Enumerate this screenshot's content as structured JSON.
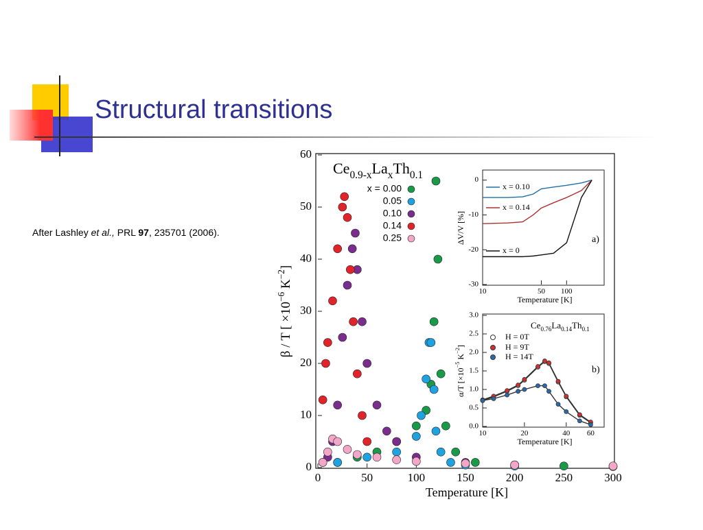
{
  "title": "Structural transitions",
  "citation": {
    "prefix": "After Lashley ",
    "etal": "et al.,",
    "journal": " PRL ",
    "volume": "97",
    "rest": ", 235701 (2006)."
  },
  "chart_data": [
    {
      "type": "scatter",
      "formula": [
        "Ce",
        "0.9-x",
        "La",
        "x",
        "Th",
        "0.1"
      ],
      "xlabel": "Temperature [K]",
      "ylabel": [
        "β / T [ ×10",
        "−6",
        " K",
        "−2",
        "]"
      ],
      "xlim": [
        0,
        300
      ],
      "ylim": [
        0,
        60
      ],
      "xticks": [
        0,
        50,
        100,
        150,
        200,
        250,
        300
      ],
      "yticks": [
        0,
        10,
        20,
        30,
        40,
        50,
        60
      ],
      "series": [
        {
          "name": "x = 0.00",
          "color": "#1a9a48",
          "x": [
            20,
            40,
            60,
            80,
            100,
            110,
            115,
            118,
            120,
            122,
            125,
            130,
            140,
            160,
            200,
            250,
            300
          ],
          "values": [
            1,
            2,
            3,
            5,
            8,
            11,
            16,
            28,
            55,
            40,
            18,
            8,
            3,
            1,
            0.5,
            0.3,
            0.2
          ]
        },
        {
          "name": "0.05",
          "color": "#1fa2e0",
          "x": [
            20,
            50,
            80,
            100,
            105,
            110,
            113,
            115,
            118,
            120,
            125,
            135,
            150,
            200
          ],
          "values": [
            1,
            2,
            3,
            6,
            10,
            17,
            24,
            24,
            15,
            7,
            3,
            1,
            0.5,
            0.3
          ]
        },
        {
          "name": "0.10",
          "color": "#7b2d8e",
          "x": [
            5,
            10,
            15,
            20,
            25,
            30,
            35,
            38,
            40,
            45,
            50,
            60,
            70,
            80,
            100,
            150,
            200
          ],
          "values": [
            1,
            2,
            5,
            12,
            25,
            35,
            42,
            45,
            38,
            28,
            20,
            12,
            7,
            5,
            2,
            1,
            0.5
          ]
        },
        {
          "name": "0.14",
          "color": "#e0242a",
          "x": [
            5,
            8,
            10,
            15,
            20,
            25,
            27,
            30,
            33,
            36,
            40,
            45,
            50
          ],
          "values": [
            13,
            20,
            24,
            32,
            42,
            50,
            52,
            48,
            38,
            28,
            18,
            10,
            5
          ]
        },
        {
          "name": "0.25",
          "color": "#f4a6c8",
          "x": [
            5,
            10,
            15,
            20,
            30,
            40,
            60,
            80,
            100,
            150,
            200,
            300
          ],
          "values": [
            1,
            3,
            5.5,
            5,
            3.5,
            2.5,
            2,
            1.5,
            1.2,
            0.8,
            0.5,
            0.3
          ]
        }
      ]
    },
    {
      "type": "line",
      "xlog": true,
      "xlabel": "Temperature [K]",
      "ylabel": [
        "ΔV/V [%]"
      ],
      "annotation": "a)",
      "xlim": [
        10,
        280
      ],
      "ylim": [
        -30,
        2.5
      ],
      "xticks": [
        10,
        50,
        100
      ],
      "yticks": [
        0,
        -10,
        -20,
        -30
      ],
      "x": [
        10,
        20,
        30,
        40,
        50,
        70,
        100,
        150,
        200
      ],
      "series": [
        {
          "name": "x = 0.10",
          "color": "#1f6fa8",
          "values": [
            -5,
            -5,
            -4.8,
            -4,
            -2.5,
            -2,
            -1.5,
            -0.8,
            0
          ]
        },
        {
          "name": "x = 0.14",
          "color": "#b03030",
          "values": [
            -12.5,
            -12.3,
            -12,
            -10,
            -8,
            -6.5,
            -5,
            -3,
            0
          ]
        },
        {
          "name": "x = 0",
          "color": "#111111",
          "values": [
            -22,
            -22,
            -22,
            -21.8,
            -21.5,
            -21,
            -18,
            -5,
            0
          ]
        }
      ]
    },
    {
      "type": "line",
      "xlog": true,
      "formula": [
        "Ce",
        "0.76",
        "La",
        "0.14",
        "Th",
        "0.1"
      ],
      "xlabel": "Temperature [K]",
      "ylabel": [
        "α/T [×10",
        "−5",
        " K",
        "−2",
        "]"
      ],
      "annotation": "b)",
      "xlim": [
        10,
        75
      ],
      "ylim": [
        0,
        3
      ],
      "xticks": [
        10,
        20,
        40,
        60
      ],
      "yticks": [
        {
          "value": 0,
          "label": "0.0"
        },
        0.5,
        {
          "value": 1,
          "label": "1.0"
        },
        1.5,
        {
          "value": 2,
          "label": "2.0"
        },
        2.5,
        {
          "value": 3,
          "label": "3.0"
        }
      ],
      "x": [
        10,
        12,
        15,
        18,
        20,
        25,
        28,
        30,
        35,
        40,
        50,
        60
      ],
      "series": [
        {
          "name": "H = 0T",
          "color": "#ffffff",
          "values": [
            0.7,
            0.8,
            0.95,
            1.1,
            1.25,
            1.6,
            1.75,
            1.7,
            1.2,
            0.8,
            0.3,
            0.1
          ]
        },
        {
          "name": "H = 9T",
          "color": "#d03030",
          "values": [
            0.72,
            0.82,
            0.97,
            1.12,
            1.27,
            1.62,
            1.77,
            1.72,
            1.22,
            0.82,
            0.32,
            0.12
          ]
        },
        {
          "name": "H = 14T",
          "color": "#2a6aa8",
          "values": [
            0.7,
            0.75,
            0.85,
            0.95,
            1.0,
            1.1,
            1.1,
            0.95,
            0.6,
            0.4,
            0.15,
            0.05
          ]
        }
      ]
    }
  ]
}
